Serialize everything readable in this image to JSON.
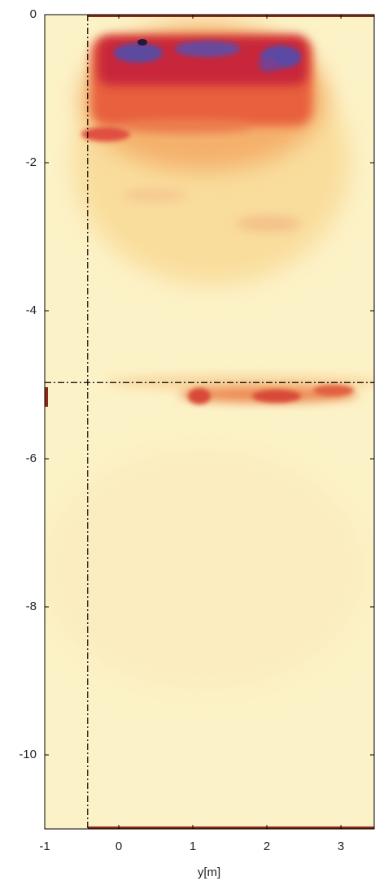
{
  "chart_data": {
    "type": "heatmap",
    "xlabel": "y[m]",
    "xlim": [
      -1,
      3.45
    ],
    "ylim": [
      -11,
      0
    ],
    "xticks": [
      -1,
      0,
      1,
      2,
      3
    ],
    "yticks": [
      0,
      -2,
      -4,
      -6,
      -8,
      -10
    ],
    "crosshair": {
      "x": -0.42,
      "y": -4.97
    }
  }
}
